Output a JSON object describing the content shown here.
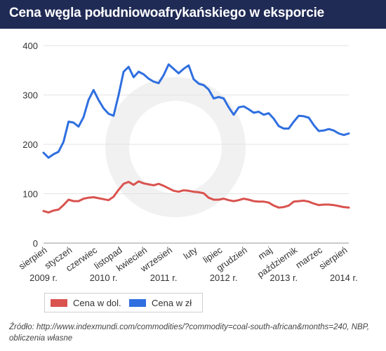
{
  "header": {
    "title": "Cena węgla południowoafrykańskiego w eksporcie"
  },
  "colors": {
    "header_bg": "#1f2a55",
    "series_usd": "#d9534f",
    "series_pln": "#2f6fe0",
    "axis_text": "#333333"
  },
  "chart_data": {
    "type": "line",
    "ylim": [
      0,
      420
    ],
    "yticks": [
      0,
      100,
      200,
      300,
      400
    ],
    "grid": true,
    "x_tick_labels": [
      {
        "label": "sierpień",
        "index": 0
      },
      {
        "label": "styczeń",
        "index": 5
      },
      {
        "label": "czerwiec",
        "index": 10
      },
      {
        "label": "listopad",
        "index": 15
      },
      {
        "label": "kwiecień",
        "index": 20
      },
      {
        "label": "wrzesień",
        "index": 25
      },
      {
        "label": "luty",
        "index": 30
      },
      {
        "label": "lipiec",
        "index": 35
      },
      {
        "label": "grudzień",
        "index": 40
      },
      {
        "label": "maj",
        "index": 45
      },
      {
        "label": "październik",
        "index": 50
      },
      {
        "label": "marzec",
        "index": 55
      },
      {
        "label": "sierpień",
        "index": 60
      }
    ],
    "year_labels": [
      {
        "label": "2009 r.",
        "index": 0
      },
      {
        "label": "2010 r.",
        "index": 12
      },
      {
        "label": "2011 r.",
        "index": 24
      },
      {
        "label": "2012 r.",
        "index": 36
      },
      {
        "label": "2013 r.",
        "index": 48
      },
      {
        "label": "2014 r.",
        "index": 60
      }
    ],
    "series": [
      {
        "name": "Cena w dol.",
        "color": "#d9534f",
        "values": [
          65,
          62,
          66,
          68,
          77,
          88,
          85,
          85,
          90,
          92,
          93,
          91,
          89,
          87,
          94,
          108,
          120,
          124,
          118,
          125,
          121,
          119,
          117,
          120,
          116,
          111,
          106,
          104,
          107,
          106,
          104,
          103,
          101,
          92,
          88,
          88,
          90,
          87,
          85,
          87,
          90,
          88,
          85,
          84,
          84,
          82,
          76,
          72,
          73,
          76,
          84,
          85,
          86,
          84,
          80,
          77,
          78,
          78,
          77,
          75,
          73,
          72
        ]
      },
      {
        "name": "Cena w zł",
        "color": "#2f6fe0",
        "values": [
          183,
          173,
          180,
          185,
          205,
          246,
          244,
          236,
          255,
          290,
          310,
          290,
          273,
          262,
          258,
          300,
          347,
          357,
          336,
          347,
          342,
          333,
          327,
          324,
          340,
          362,
          353,
          344,
          353,
          360,
          332,
          323,
          320,
          311,
          293,
          296,
          293,
          275,
          260,
          275,
          277,
          271,
          264,
          266,
          260,
          263,
          252,
          237,
          232,
          232,
          246,
          258,
          257,
          254,
          239,
          227,
          228,
          231,
          228,
          222,
          219,
          222
        ]
      }
    ]
  },
  "legend": {
    "usd_label": "Cena w dol.",
    "pln_label": "Cena w zł"
  },
  "source": {
    "text": "Źródło: http://www.indexmundi.com/commodities/?commodity=coal-south-african&months=240, NBP, obliczenia własne"
  }
}
